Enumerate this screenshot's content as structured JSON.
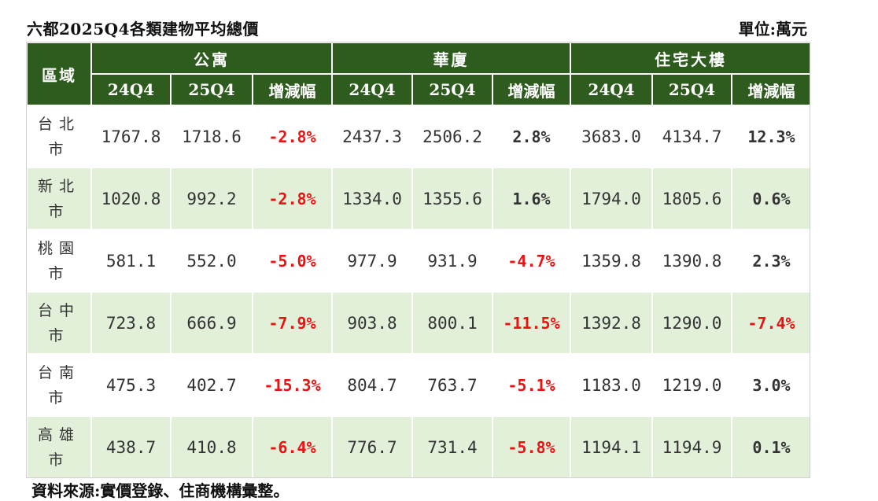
{
  "title": "六都2025Q4各類建物平均總價",
  "unit": "單位:萬元",
  "source": "資料來源:實價登錄、住商機構彙整。",
  "colors": {
    "header_bg": "#2e5b1e",
    "row_alt_bg": "#e2efd9",
    "negative": "#ee1111"
  },
  "chart_data": {
    "type": "table",
    "header": {
      "region": "區域",
      "groups": [
        "公寓",
        "華廈",
        "住宅大樓"
      ],
      "subcols": [
        "24Q4",
        "25Q4",
        "增減幅"
      ]
    },
    "rows": [
      {
        "city": "台北市",
        "cells": [
          [
            "1767.8",
            "1718.6",
            "-2.8%"
          ],
          [
            "2437.3",
            "2506.2",
            "2.8%"
          ],
          [
            "3683.0",
            "4134.7",
            "12.3%"
          ]
        ]
      },
      {
        "city": "新北市",
        "cells": [
          [
            "1020.8",
            "992.2",
            "-2.8%"
          ],
          [
            "1334.0",
            "1355.6",
            "1.6%"
          ],
          [
            "1794.0",
            "1805.6",
            "0.6%"
          ]
        ]
      },
      {
        "city": "桃園市",
        "cells": [
          [
            "581.1",
            "552.0",
            "-5.0%"
          ],
          [
            "977.9",
            "931.9",
            "-4.7%"
          ],
          [
            "1359.8",
            "1390.8",
            "2.3%"
          ]
        ]
      },
      {
        "city": "台中市",
        "cells": [
          [
            "723.8",
            "666.9",
            "-7.9%"
          ],
          [
            "903.8",
            "800.1",
            "-11.5%"
          ],
          [
            "1392.8",
            "1290.0",
            "-7.4%"
          ]
        ]
      },
      {
        "city": "台南市",
        "cells": [
          [
            "475.3",
            "402.7",
            "-15.3%"
          ],
          [
            "804.7",
            "763.7",
            "-5.1%"
          ],
          [
            "1183.0",
            "1219.0",
            "3.0%"
          ]
        ]
      },
      {
        "city": "高雄市",
        "cells": [
          [
            "438.7",
            "410.8",
            "-6.4%"
          ],
          [
            "776.7",
            "731.4",
            "-5.8%"
          ],
          [
            "1194.1",
            "1194.9",
            "0.1%"
          ]
        ]
      }
    ]
  }
}
